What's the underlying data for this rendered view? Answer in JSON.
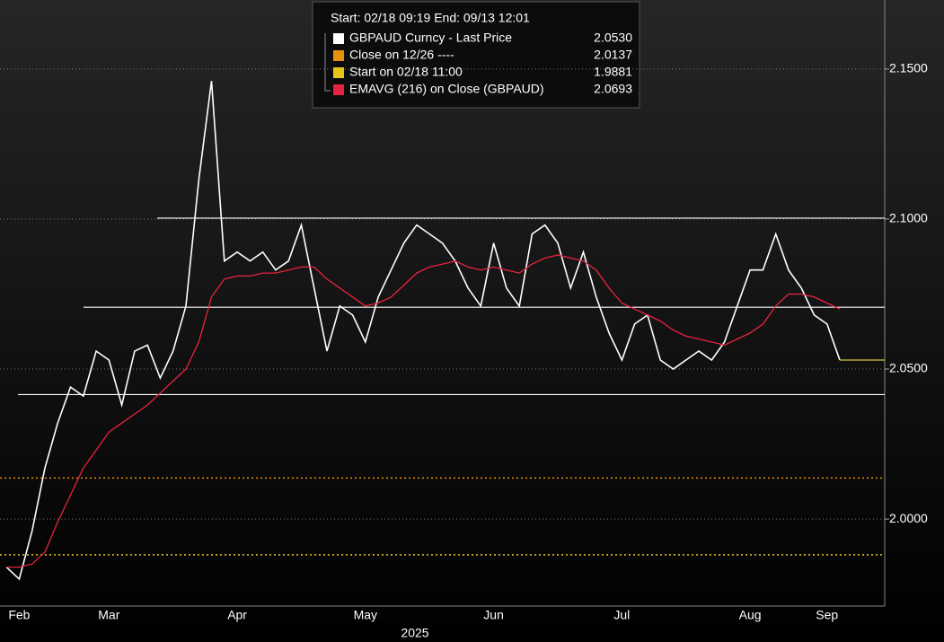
{
  "chart_data": {
    "type": "line",
    "header": "Start: 02/18 09:19 End: 09/13 12:01",
    "xlabel": "2025",
    "categories": [
      null,
      "Feb",
      null,
      null,
      null,
      null,
      null,
      null,
      "Mar",
      null,
      null,
      null,
      null,
      null,
      null,
      null,
      null,
      null,
      "Apr",
      null,
      null,
      null,
      null,
      null,
      null,
      null,
      null,
      null,
      "May",
      null,
      null,
      null,
      null,
      null,
      null,
      null,
      null,
      null,
      "Jun",
      null,
      null,
      null,
      null,
      null,
      null,
      null,
      null,
      null,
      "Jul",
      null,
      null,
      null,
      null,
      null,
      null,
      null,
      null,
      null,
      "Aug",
      null,
      null,
      null,
      null,
      null,
      "Sep",
      null,
      null,
      null,
      null
    ],
    "series": [
      {
        "name": "GBPAUD Curncy - Last Price",
        "color": "#ffffff",
        "last": {
          "value": 2.053,
          "label": "2.0530"
        },
        "values": [
          1.984,
          1.98,
          1.996,
          2.017,
          2.032,
          2.044,
          2.041,
          2.056,
          2.053,
          2.038,
          2.056,
          2.058,
          2.047,
          2.056,
          2.071,
          2.113,
          2.146,
          2.086,
          2.089,
          2.086,
          2.089,
          2.083,
          2.086,
          2.098,
          2.077,
          2.056,
          2.071,
          2.068,
          2.059,
          2.074,
          2.083,
          2.092,
          2.098,
          2.095,
          2.092,
          2.086,
          2.077,
          2.071,
          2.092,
          2.077,
          2.071,
          2.095,
          2.098,
          2.092,
          2.077,
          2.089,
          2.074,
          2.062,
          2.053,
          2.065,
          2.068,
          2.053,
          2.05,
          2.053,
          2.056,
          2.053,
          2.059,
          2.071,
          2.083,
          2.083,
          2.095,
          2.083,
          2.077,
          2.068,
          2.065,
          2.053,
          null,
          null,
          null
        ]
      },
      {
        "name": "Close on 12/26 ----",
        "color": "#e8900c",
        "level": {
          "value": 2.0137,
          "label": "2.0137"
        }
      },
      {
        "name": "Start on 02/18 11:00",
        "color": "#e6c619",
        "level": {
          "value": 1.9881,
          "label": "1.9881"
        }
      },
      {
        "name": "EMAVG (216)  on Close (GBPAUD)",
        "color": "#e8233f",
        "last": {
          "value": 2.0693,
          "label": "2.0693"
        },
        "values": [
          1.984,
          1.984,
          1.985,
          1.989,
          1.999,
          2.008,
          2.017,
          2.023,
          2.029,
          2.032,
          2.035,
          2.038,
          2.042,
          2.046,
          2.05,
          2.059,
          2.074,
          2.08,
          2.081,
          2.081,
          2.082,
          2.082,
          2.083,
          2.084,
          2.084,
          2.08,
          2.077,
          2.074,
          2.071,
          2.072,
          2.074,
          2.078,
          2.082,
          2.084,
          2.085,
          2.086,
          2.084,
          2.083,
          2.084,
          2.083,
          2.082,
          2.085,
          2.087,
          2.088,
          2.087,
          2.086,
          2.083,
          2.077,
          2.072,
          2.07,
          2.068,
          2.066,
          2.063,
          2.061,
          2.06,
          2.059,
          2.058,
          2.06,
          2.062,
          2.065,
          2.071,
          2.075,
          2.075,
          2.074,
          2.072,
          2.07,
          null,
          null,
          null
        ]
      }
    ],
    "reference_lines": [
      2.1003,
      2.0706,
      2.0415
    ],
    "ylim": [
      1.971,
      2.173
    ],
    "yticks": [
      {
        "value": 2.0,
        "label": "2.0000"
      },
      {
        "value": 2.05,
        "label": "2.0500"
      },
      {
        "value": 2.1,
        "label": "2.1000"
      },
      {
        "value": 2.15,
        "label": "2.1500"
      }
    ],
    "grid": true
  }
}
